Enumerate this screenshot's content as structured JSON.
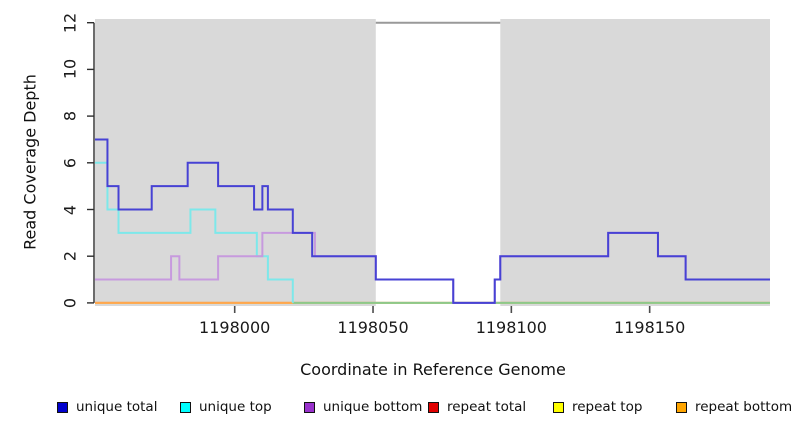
{
  "chart_data": {
    "type": "line",
    "subtype": "step-coverage",
    "title": "",
    "xlabel": "Coordinate in Reference Genome",
    "ylabel": "Read Coverage Depth",
    "xlim": [
      1197949.5,
      1198193.5
    ],
    "ylim": [
      0,
      12
    ],
    "x_ticks": [
      1198000,
      1198050,
      1198100,
      1198150
    ],
    "y_ticks": [
      0,
      2,
      4,
      6,
      8,
      10,
      12
    ],
    "grid": false,
    "legend_position": "bottom",
    "shaded_regions": [
      {
        "from": 1197949.5,
        "to": 1198051,
        "color": "#d9d9d9"
      },
      {
        "from": 1198096,
        "to": 1198193.5,
        "color": "#d9d9d9"
      }
    ],
    "gap_top_line": {
      "y": 12,
      "from": 1198051,
      "to": 1198096,
      "color": "#999999"
    },
    "series": [
      {
        "name": "unique total",
        "legend_color": "#0000cd",
        "line_color": "#4742d4",
        "steps": [
          [
            1197949.5,
            7
          ],
          [
            1197954,
            5
          ],
          [
            1197958,
            4
          ],
          [
            1197970,
            5
          ],
          [
            1197983,
            6
          ],
          [
            1197994,
            5
          ],
          [
            1198007,
            4
          ],
          [
            1198010,
            5
          ],
          [
            1198012,
            4
          ],
          [
            1198021,
            3
          ],
          [
            1198028,
            2
          ],
          [
            1198051,
            1
          ],
          [
            1198079,
            0
          ],
          [
            1198094,
            1
          ],
          [
            1198096,
            2
          ],
          [
            1198135,
            3
          ],
          [
            1198153,
            2
          ],
          [
            1198163,
            1
          ]
        ],
        "end": 1198193.5
      },
      {
        "name": "unique top",
        "legend_color": "#00ffff",
        "line_color": "#7de8ea",
        "steps": [
          [
            1197949.5,
            6
          ],
          [
            1197954,
            4
          ],
          [
            1197958,
            3
          ],
          [
            1197984,
            4
          ],
          [
            1197993,
            3
          ],
          [
            1198008,
            2
          ],
          [
            1198012,
            1
          ],
          [
            1198021,
            0
          ]
        ],
        "end": 1198021
      },
      {
        "name": "unique bottom",
        "legend_color": "#9932cc",
        "line_color": "#c79ade",
        "steps": [
          [
            1197949.5,
            1
          ],
          [
            1197977,
            2
          ],
          [
            1197980,
            1
          ],
          [
            1197994,
            2
          ],
          [
            1198010,
            3
          ],
          [
            1198029,
            2
          ],
          [
            1198051,
            1
          ],
          [
            1198079,
            0
          ],
          [
            1198094,
            1
          ],
          [
            1198096,
            2
          ],
          [
            1198135,
            3
          ],
          [
            1198153,
            2
          ],
          [
            1198163,
            1
          ]
        ],
        "end": 1198193.5
      },
      {
        "name": "repeat total",
        "legend_color": "#e00000",
        "line_color": "#e06060",
        "steps": [
          [
            1197949.5,
            0
          ]
        ],
        "end": 1198193.5
      },
      {
        "name": "repeat top",
        "legend_color": "#ffff00",
        "line_color": "#eded6a",
        "steps": [
          [
            1197949.5,
            0
          ]
        ],
        "end": 1198193.5
      },
      {
        "name": "repeat bottom",
        "legend_color": "#ffa500",
        "line_color": "#ffa64f",
        "steps": [
          [
            1197949.5,
            0
          ]
        ],
        "end": 1198021
      }
    ],
    "zero_overlap_segment": {
      "from": 1198021,
      "to": 1198193.5,
      "y": 0,
      "color": "#8cc88c"
    }
  },
  "axes": {
    "y_title": "Read Coverage Depth",
    "x_title": "Coordinate in Reference Genome",
    "y_tick_labels": [
      "0",
      "2",
      "4",
      "6",
      "8",
      "10",
      "12"
    ],
    "x_tick_labels": [
      "1198000",
      "1198050",
      "1198100",
      "1198150"
    ]
  },
  "legend": {
    "items": [
      {
        "label": "unique total",
        "color": "#0000cd"
      },
      {
        "label": "unique top",
        "color": "#00ffff"
      },
      {
        "label": "unique bottom",
        "color": "#9932cc"
      },
      {
        "label": "repeat total",
        "color": "#e00000"
      },
      {
        "label": "repeat top",
        "color": "#ffff00"
      },
      {
        "label": "repeat bottom",
        "color": "#ffa500"
      }
    ]
  }
}
